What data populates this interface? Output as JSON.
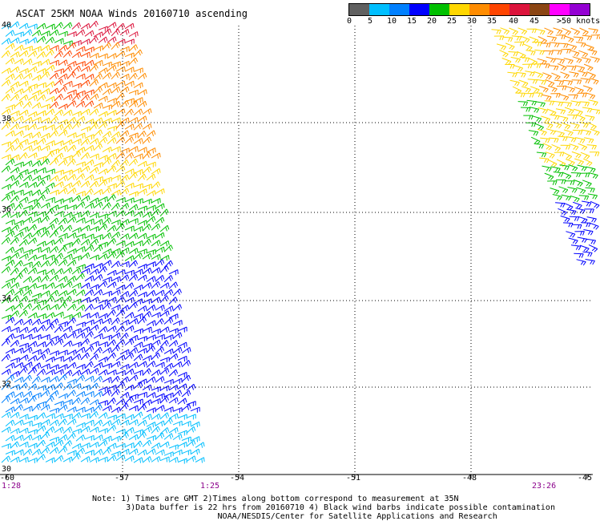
{
  "title": "ASCAT 25KM NOAA Winds 20160710 ascending",
  "legend": {
    "colors": [
      "#606060",
      "#b0b0b0",
      "#00bfff",
      "#0080ff",
      "#0000ff",
      "#00c000",
      "#80ff00",
      "#ffd700",
      "#ff8c00",
      "#ff4500",
      "#dc143c",
      "#8b4513",
      "#ff00ff",
      "#9400d3",
      "#4b0082"
    ],
    "labels": [
      "0",
      "5",
      "10",
      "15",
      "20",
      "25",
      "30",
      "35",
      "40",
      "45",
      ">50 knots"
    ]
  },
  "axes": {
    "lat_labels": [
      "40",
      "38",
      "36",
      "34",
      "32",
      "30"
    ],
    "lon_labels": [
      "-60",
      "-57",
      "-54",
      "-51",
      "-48",
      "-45"
    ]
  },
  "times": [
    "1:28",
    "1:25",
    "23:26"
  ],
  "notes": "Note: 1) Times are GMT 2)Times along bottom correspond to measurement at 35N\n       3)Data buffer is 22 hrs from 20160710 4) Black wind barbs indicate possible contamination\n                          NOAA/NESDIS/Center for Satellite Applications and Research"
}
